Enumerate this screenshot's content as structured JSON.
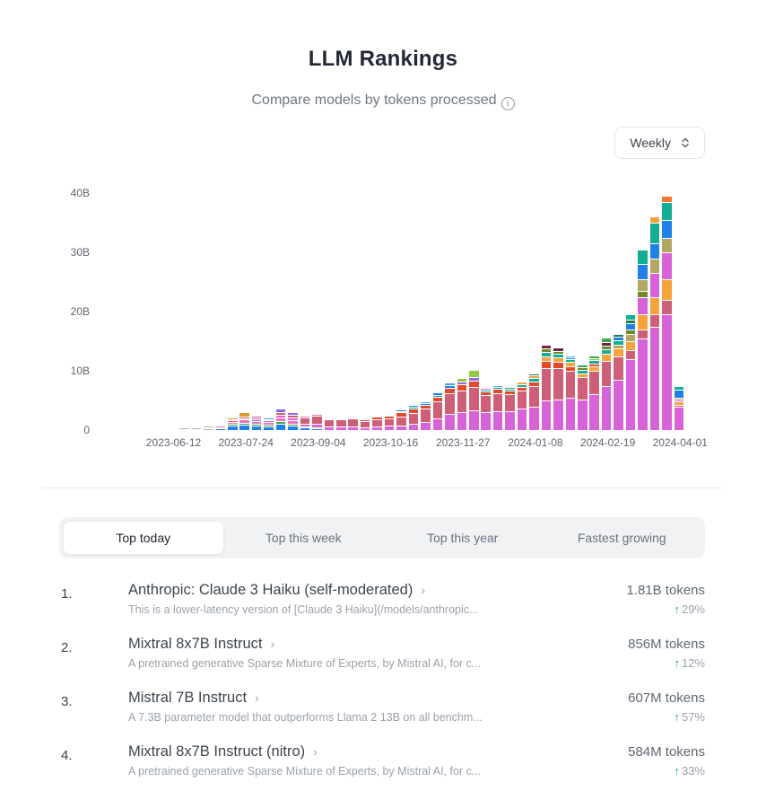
{
  "header": {
    "title": "LLM Rankings",
    "subtitle": "Compare models by tokens processed",
    "info_icon": "info-circle"
  },
  "controls": {
    "period_value": "Weekly"
  },
  "chart_data": {
    "type": "bar",
    "stacked": true,
    "title": "Tokens processed per week",
    "y_axis": {
      "tick_labels": [
        "0",
        "10B",
        "20B",
        "30B",
        "40B"
      ],
      "max": 40,
      "unit": "billions of tokens"
    },
    "x_axis": {
      "tick_labels": [
        "2023-06-12",
        "2023-07-24",
        "2023-09-04",
        "2023-10-16",
        "2023-11-27",
        "2024-01-08",
        "2024-02-19",
        "2024-04-01"
      ],
      "tick_bar_indices": [
        4,
        10,
        16,
        22,
        28,
        34,
        40,
        46
      ]
    },
    "palette": {
      "mg": "#d863d8",
      "rs": "#cd6077",
      "tm": "#e34a2c",
      "og": "#f4752c",
      "am": "#f5a43c",
      "kh": "#b2a660",
      "gd": "#d89d2e",
      "bl": "#2080e8",
      "sb": "#41a7e5",
      "tl": "#12ad94",
      "gn": "#3ea34f",
      "yg": "#94c83d",
      "ol": "#6e8b26",
      "hp": "#ee70c0",
      "mp": "#8a6be0",
      "dk": "#6d2446",
      "dg": "#277a4e",
      "gy": "#ccd6d4",
      "tn": "#d4b38c",
      "sg": "#9cbfac"
    },
    "bars": [
      {
        "t": 0.05,
        "s": [
          [
            "gy",
            0.05
          ]
        ]
      },
      {
        "t": 0.1,
        "s": [
          [
            "gy",
            0.1
          ]
        ]
      },
      {
        "t": 0.15,
        "s": [
          [
            "gy",
            0.15
          ]
        ]
      },
      {
        "t": 0.35,
        "s": [
          [
            "gy",
            0.1
          ],
          [
            "tn",
            0.1
          ],
          [
            "sg",
            0.15
          ]
        ]
      },
      {
        "t": 0.45,
        "s": [
          [
            "gy",
            0.1
          ],
          [
            "tn",
            0.15
          ],
          [
            "sg",
            0.2
          ]
        ]
      },
      {
        "t": 0.55,
        "s": [
          [
            "gy",
            0.1
          ],
          [
            "sg",
            0.25
          ],
          [
            "tn",
            0.2
          ]
        ]
      },
      {
        "t": 0.55,
        "s": [
          [
            "gy",
            0.1
          ],
          [
            "sg",
            0.3
          ],
          [
            "tn",
            0.15
          ]
        ]
      },
      {
        "t": 0.7,
        "s": [
          [
            "sg",
            0.3
          ],
          [
            "tl",
            0.2
          ],
          [
            "tn",
            0.2
          ]
        ]
      },
      {
        "t": 1.1,
        "s": [
          [
            "bl",
            0.25
          ],
          [
            "sg",
            0.25
          ],
          [
            "hp",
            0.2
          ],
          [
            "tn",
            0.2
          ],
          [
            "gd",
            0.2
          ]
        ]
      },
      {
        "t": 2.2,
        "s": [
          [
            "bl",
            0.7
          ],
          [
            "gn",
            0.3
          ],
          [
            "hp",
            0.4
          ],
          [
            "rs",
            0.2
          ],
          [
            "mg",
            0.2
          ],
          [
            "gd",
            0.4
          ]
        ]
      },
      {
        "t": 3.0,
        "s": [
          [
            "bl",
            0.9
          ],
          [
            "gn",
            0.35
          ],
          [
            "hp",
            0.55
          ],
          [
            "mg",
            0.25
          ],
          [
            "rs",
            0.25
          ],
          [
            "gd",
            0.7
          ]
        ]
      },
      {
        "t": 2.4,
        "s": [
          [
            "bl",
            0.7
          ],
          [
            "gn",
            0.3
          ],
          [
            "hp",
            0.5
          ],
          [
            "mp",
            0.3
          ],
          [
            "mg",
            0.3
          ],
          [
            "rs",
            0.3
          ]
        ]
      },
      {
        "t": 2.1,
        "s": [
          [
            "bl",
            0.6
          ],
          [
            "gn",
            0.3
          ],
          [
            "hp",
            0.4
          ],
          [
            "mg",
            0.3
          ],
          [
            "rs",
            0.3
          ],
          [
            "sb",
            0.2
          ]
        ]
      },
      {
        "t": 3.7,
        "s": [
          [
            "bl",
            1.1
          ],
          [
            "gn",
            0.4
          ],
          [
            "hp",
            0.6
          ],
          [
            "mg",
            0.5
          ],
          [
            "rs",
            0.4
          ],
          [
            "mp",
            0.7
          ]
        ]
      },
      {
        "t": 3.0,
        "s": [
          [
            "bl",
            0.8
          ],
          [
            "gn",
            0.3
          ],
          [
            "hp",
            0.5
          ],
          [
            "mg",
            0.5
          ],
          [
            "rs",
            0.5
          ],
          [
            "mp",
            0.4
          ]
        ]
      },
      {
        "t": 2.4,
        "s": [
          [
            "bl",
            0.4
          ],
          [
            "gn",
            0.2
          ],
          [
            "mg",
            0.5
          ],
          [
            "rs",
            1.0
          ],
          [
            "hp",
            0.3
          ]
        ]
      },
      {
        "t": 2.7,
        "s": [
          [
            "bl",
            0.3
          ],
          [
            "tl",
            0.2
          ],
          [
            "mg",
            0.6
          ],
          [
            "rs",
            1.3
          ],
          [
            "hp",
            0.3
          ]
        ]
      },
      {
        "t": 2.2,
        "s": [
          [
            "mg",
            0.6
          ],
          [
            "rs",
            1.2
          ],
          [
            "hp",
            0.2
          ],
          [
            "sb",
            0.2
          ]
        ]
      },
      {
        "t": 2.1,
        "s": [
          [
            "mg",
            0.6
          ],
          [
            "rs",
            1.2
          ],
          [
            "am",
            0.15
          ],
          [
            "tm",
            0.15
          ]
        ]
      },
      {
        "t": 2.2,
        "s": [
          [
            "mg",
            0.6
          ],
          [
            "rs",
            1.3
          ],
          [
            "tm",
            0.3
          ]
        ]
      },
      {
        "t": 1.8,
        "s": [
          [
            "mg",
            0.5
          ],
          [
            "rs",
            1.0
          ],
          [
            "tm",
            0.3
          ]
        ]
      },
      {
        "t": 2.3,
        "s": [
          [
            "mg",
            0.6
          ],
          [
            "rs",
            1.2
          ],
          [
            "tm",
            0.5
          ]
        ]
      },
      {
        "t": 2.6,
        "s": [
          [
            "mg",
            0.7
          ],
          [
            "rs",
            1.2
          ],
          [
            "tm",
            0.5
          ],
          [
            "am",
            0.2
          ]
        ]
      },
      {
        "t": 3.5,
        "s": [
          [
            "mg",
            0.8
          ],
          [
            "rs",
            1.5
          ],
          [
            "tm",
            0.7
          ],
          [
            "tl",
            0.25
          ],
          [
            "bl",
            0.25
          ]
        ]
      },
      {
        "t": 4.2,
        "s": [
          [
            "mg",
            1.0
          ],
          [
            "rs",
            1.9
          ],
          [
            "tm",
            0.7
          ],
          [
            "tl",
            0.3
          ],
          [
            "bl",
            0.3
          ]
        ]
      },
      {
        "t": 4.9,
        "s": [
          [
            "mg",
            1.4
          ],
          [
            "rs",
            2.2
          ],
          [
            "tm",
            0.7
          ],
          [
            "bl",
            0.3
          ],
          [
            "sb",
            0.3
          ]
        ]
      },
      {
        "t": 6.3,
        "s": [
          [
            "mg",
            2.0
          ],
          [
            "rs",
            2.8
          ],
          [
            "tm",
            0.8
          ],
          [
            "tl",
            0.3
          ],
          [
            "bl",
            0.4
          ]
        ]
      },
      {
        "t": 8.0,
        "s": [
          [
            "mg",
            2.8
          ],
          [
            "rs",
            3.4
          ],
          [
            "tm",
            1.0
          ],
          [
            "bl",
            0.4
          ],
          [
            "sb",
            0.4
          ]
        ]
      },
      {
        "t": 8.8,
        "s": [
          [
            "mg",
            3.0
          ],
          [
            "rs",
            3.6
          ],
          [
            "tm",
            1.1
          ],
          [
            "mp",
            0.5
          ],
          [
            "yg",
            0.6
          ]
        ]
      },
      {
        "t": 10.1,
        "s": [
          [
            "mg",
            3.4
          ],
          [
            "rs",
            3.8
          ],
          [
            "tm",
            1.2
          ],
          [
            "mp",
            0.5
          ],
          [
            "yg",
            1.2
          ]
        ]
      },
      {
        "t": 7.2,
        "s": [
          [
            "mg",
            3.0
          ],
          [
            "rs",
            2.9
          ],
          [
            "tm",
            0.6
          ],
          [
            "tl",
            0.4
          ],
          [
            "hp",
            0.3
          ]
        ]
      },
      {
        "t": 7.6,
        "s": [
          [
            "mg",
            3.2
          ],
          [
            "rs",
            3.0
          ],
          [
            "tm",
            0.7
          ],
          [
            "tl",
            0.4
          ],
          [
            "sb",
            0.3
          ]
        ]
      },
      {
        "t": 7.3,
        "s": [
          [
            "mg",
            3.2
          ],
          [
            "rs",
            2.9
          ],
          [
            "tm",
            0.5
          ],
          [
            "tl",
            0.4
          ],
          [
            "gn",
            0.3
          ]
        ]
      },
      {
        "t": 8.2,
        "s": [
          [
            "mg",
            3.6
          ],
          [
            "rs",
            3.1
          ],
          [
            "tm",
            0.6
          ],
          [
            "tl",
            0.5
          ],
          [
            "am",
            0.4
          ]
        ]
      },
      {
        "t": 9.5,
        "s": [
          [
            "mg",
            4.0
          ],
          [
            "rs",
            3.5
          ],
          [
            "tm",
            0.7
          ],
          [
            "tl",
            0.6
          ],
          [
            "am",
            0.4
          ],
          [
            "dg",
            0.3
          ]
        ]
      },
      {
        "t": 14.4,
        "s": [
          [
            "mg",
            5.0
          ],
          [
            "rs",
            5.5
          ],
          [
            "tm",
            1.2
          ],
          [
            "am",
            0.8
          ],
          [
            "tl",
            0.7
          ],
          [
            "ol",
            0.6
          ],
          [
            "dk",
            0.6
          ]
        ]
      },
      {
        "t": 14.0,
        "s": [
          [
            "mg",
            5.2
          ],
          [
            "rs",
            5.2
          ],
          [
            "tm",
            1.1
          ],
          [
            "am",
            0.8
          ],
          [
            "tl",
            0.6
          ],
          [
            "ol",
            0.5
          ],
          [
            "dk",
            0.6
          ]
        ]
      },
      {
        "t": 12.6,
        "s": [
          [
            "mg",
            5.5
          ],
          [
            "rs",
            4.5
          ],
          [
            "tm",
            0.8
          ],
          [
            "am",
            0.7
          ],
          [
            "tl",
            0.5
          ],
          [
            "bl",
            0.3
          ],
          [
            "sb",
            0.3
          ]
        ]
      },
      {
        "t": 11.0,
        "s": [
          [
            "mg",
            5.2
          ],
          [
            "rs",
            3.8
          ],
          [
            "am",
            0.6
          ],
          [
            "tl",
            0.5
          ],
          [
            "ol",
            0.5
          ],
          [
            "gn",
            0.4
          ]
        ]
      },
      {
        "t": 12.6,
        "s": [
          [
            "mg",
            6.0
          ],
          [
            "rs",
            4.0
          ],
          [
            "am",
            0.8
          ],
          [
            "tm",
            0.4
          ],
          [
            "tl",
            0.6
          ],
          [
            "yg",
            0.4
          ],
          [
            "gn",
            0.4
          ]
        ]
      },
      {
        "t": 15.6,
        "s": [
          [
            "mg",
            7.5
          ],
          [
            "rs",
            4.2
          ],
          [
            "am",
            1.2
          ],
          [
            "tl",
            0.7
          ],
          [
            "ol",
            0.6
          ],
          [
            "dk",
            0.6
          ],
          [
            "gn",
            0.8
          ]
        ]
      },
      {
        "t": 16.2,
        "s": [
          [
            "mg",
            8.5
          ],
          [
            "rs",
            4.0
          ],
          [
            "am",
            1.3
          ],
          [
            "kh",
            0.6
          ],
          [
            "tl",
            0.8
          ],
          [
            "bl",
            0.5
          ],
          [
            "dg",
            0.5
          ]
        ]
      },
      {
        "t": 19.5,
        "s": [
          [
            "mg",
            12.0
          ],
          [
            "rs",
            1.5
          ],
          [
            "am",
            1.5
          ],
          [
            "kh",
            1.2
          ],
          [
            "ol",
            0.8
          ],
          [
            "bl",
            1.0
          ],
          [
            "dg",
            0.6
          ],
          [
            "tl",
            0.9
          ]
        ]
      },
      {
        "t": 30.5,
        "s": [
          [
            "mg",
            15.5
          ],
          [
            "rs",
            1.5
          ],
          [
            "am",
            2.5
          ],
          [
            "mg",
            3.0
          ],
          [
            "ol",
            1.0
          ],
          [
            "kh",
            2.0
          ],
          [
            "bl",
            2.5
          ],
          [
            "tl",
            2.5
          ]
        ]
      },
      {
        "t": 36.0,
        "s": [
          [
            "mg",
            17.5
          ],
          [
            "rs",
            2.0
          ],
          [
            "am",
            3.0
          ],
          [
            "mg",
            4.0
          ],
          [
            "kh",
            2.5
          ],
          [
            "bl",
            2.5
          ],
          [
            "tl",
            3.5
          ],
          [
            "am",
            1.0
          ]
        ]
      },
      {
        "t": 39.5,
        "s": [
          [
            "mg",
            19.5
          ],
          [
            "rs",
            2.5
          ],
          [
            "am",
            3.5
          ],
          [
            "mg",
            4.5
          ],
          [
            "kh",
            2.5
          ],
          [
            "bl",
            3.0
          ],
          [
            "tl",
            3.0
          ],
          [
            "og",
            1.0
          ]
        ]
      },
      {
        "t": 7.5,
        "s": [
          [
            "mg",
            4.0
          ],
          [
            "rs",
            0.3
          ],
          [
            "am",
            0.5
          ],
          [
            "mg",
            0.4
          ],
          [
            "kh",
            0.3
          ],
          [
            "bl",
            1.4
          ],
          [
            "tl",
            0.6
          ]
        ]
      }
    ]
  },
  "tabs": [
    {
      "label": "Top today",
      "active": true
    },
    {
      "label": "Top this week",
      "active": false
    },
    {
      "label": "Top this year",
      "active": false
    },
    {
      "label": "Fastest growing",
      "active": false
    }
  ],
  "ranking": [
    {
      "rank": "1.",
      "name": "Anthropic: Claude 3 Haiku (self-moderated)",
      "chevron": "›",
      "desc": "This is a lower-latency version of [Claude 3 Haiku](/models/anthropic...",
      "tokens": "1.81B tokens",
      "delta_arrow": "↑",
      "delta": "29%"
    },
    {
      "rank": "2.",
      "name": "Mixtral 8x7B Instruct",
      "chevron": "›",
      "desc": "A pretrained generative Sparse Mixture of Experts, by Mistral AI, for c...",
      "tokens": "856M tokens",
      "delta_arrow": "↑",
      "delta": "12%"
    },
    {
      "rank": "3.",
      "name": "Mistral 7B Instruct",
      "chevron": "›",
      "desc": "A 7.3B parameter model that outperforms Llama 2 13B on all benchm...",
      "tokens": "607M tokens",
      "delta_arrow": "↑",
      "delta": "57%"
    },
    {
      "rank": "4.",
      "name": "Mixtral 8x7B Instruct (nitro)",
      "chevron": "›",
      "desc": "A pretrained generative Sparse Mixture of Experts, by Mistral AI, for c...",
      "tokens": "584M tokens",
      "delta_arrow": "↑",
      "delta": "33%"
    }
  ],
  "colors": {
    "accent_up": "#12a594",
    "divider": "#e7e9ec",
    "tab_bg": "#f1f2f4"
  }
}
